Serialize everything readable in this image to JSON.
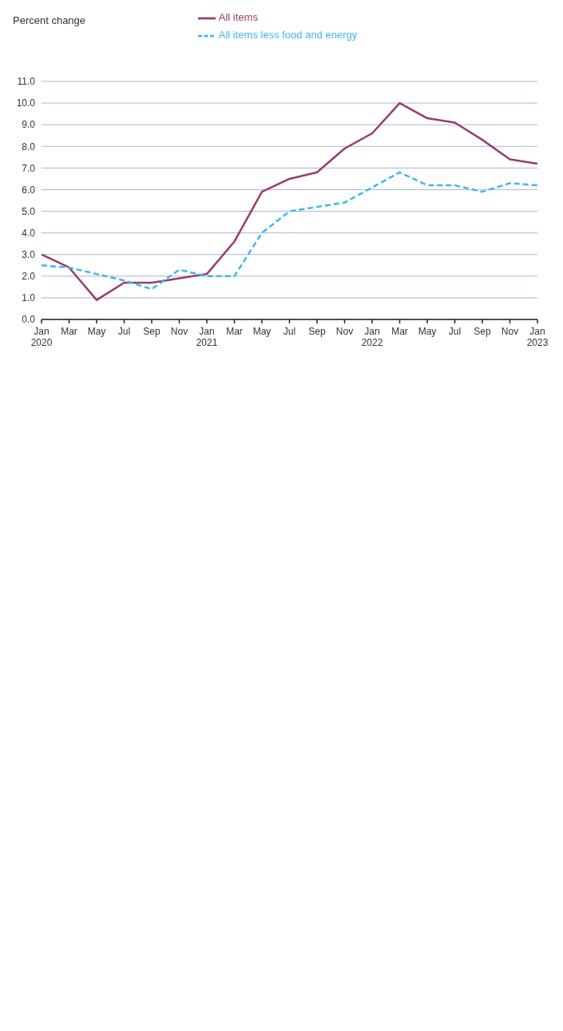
{
  "chart_data": {
    "type": "line",
    "ylabel": "Percent change",
    "x": [
      "2020-01",
      "2020-03",
      "2020-05",
      "2020-07",
      "2020-09",
      "2020-11",
      "2021-01",
      "2021-03",
      "2021-05",
      "2021-07",
      "2021-09",
      "2021-11",
      "2022-01",
      "2022-03",
      "2022-05",
      "2022-07",
      "2022-09",
      "2022-11",
      "2023-01"
    ],
    "series": [
      {
        "name": "All items",
        "color": "#9b3a6e",
        "line_style": "solid",
        "values": [
          3.0,
          2.4,
          0.9,
          1.7,
          1.7,
          1.9,
          2.1,
          3.6,
          5.9,
          6.5,
          6.8,
          7.9,
          8.6,
          10.0,
          9.3,
          9.1,
          8.3,
          7.4,
          7.2
        ]
      },
      {
        "name": "All items less food and energy",
        "color": "#3db7f0",
        "line_style": "dashed",
        "values": [
          2.5,
          2.4,
          2.1,
          1.8,
          1.4,
          2.3,
          2.0,
          2.0,
          4.0,
          5.0,
          5.2,
          5.4,
          6.1,
          6.8,
          6.2,
          6.2,
          5.9,
          6.3,
          6.2
        ]
      }
    ],
    "xlim": [
      "2020-01",
      "2023-01"
    ],
    "xticks": [
      {
        "value": "2020-01",
        "label": "Jan\n2020"
      },
      {
        "value": "2020-03",
        "label": "Mar"
      },
      {
        "value": "2020-05",
        "label": "May"
      },
      {
        "value": "2020-07",
        "label": "Jul"
      },
      {
        "value": "2020-09",
        "label": "Sep"
      },
      {
        "value": "2020-11",
        "label": "Nov"
      },
      {
        "value": "2021-01",
        "label": "Jan\n2021"
      },
      {
        "value": "2021-03",
        "label": "Mar"
      },
      {
        "value": "2021-05",
        "label": "May"
      },
      {
        "value": "2021-07",
        "label": "Jul"
      },
      {
        "value": "2021-09",
        "label": "Sep"
      },
      {
        "value": "2021-11",
        "label": "Nov"
      },
      {
        "value": "2022-01",
        "label": "Jan\n2022"
      },
      {
        "value": "2022-03",
        "label": "Mar"
      },
      {
        "value": "2022-05",
        "label": "May"
      },
      {
        "value": "2022-07",
        "label": "Jul"
      },
      {
        "value": "2022-09",
        "label": "Sep"
      },
      {
        "value": "2022-11",
        "label": "Nov"
      },
      {
        "value": "2023-01",
        "label": "Jan\n2023"
      }
    ],
    "ylim": [
      0,
      11
    ],
    "yticks": [
      {
        "value": 0,
        "label": "0.0"
      },
      {
        "value": 1,
        "label": "1.0"
      },
      {
        "value": 2,
        "label": "2.0"
      },
      {
        "value": 3,
        "label": "3.0"
      },
      {
        "value": 4,
        "label": "4.0"
      },
      {
        "value": 5,
        "label": "5.0"
      },
      {
        "value": 6,
        "label": "6.0"
      },
      {
        "value": 7,
        "label": "7.0"
      },
      {
        "value": 8,
        "label": "8.0"
      },
      {
        "value": 9,
        "label": "9.0"
      },
      {
        "value": 10,
        "label": "10.0"
      },
      {
        "value": 11,
        "label": "11.0"
      }
    ],
    "grid": "y",
    "legend": "top"
  }
}
